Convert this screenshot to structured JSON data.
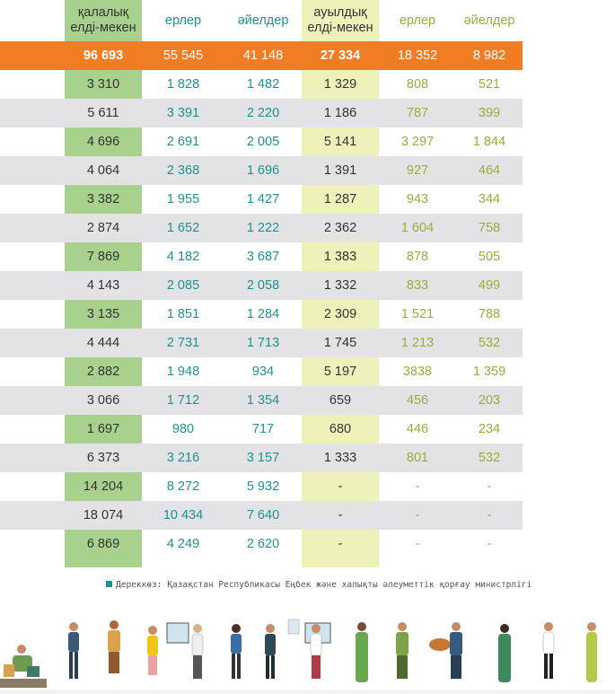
{
  "headers": {
    "urban": "қалалық\nелді-мекен",
    "urban_men": "ерлер",
    "urban_women": "әйелдер",
    "rural": "ауылдық\nелді-мекен",
    "rural_men": "ерлер",
    "rural_women": "әйелдер"
  },
  "total": [
    "96 693",
    "55 545",
    "41 148",
    "27 334",
    "18 352",
    "8 982"
  ],
  "rows": [
    [
      "3 310",
      "1 828",
      "1 482",
      "1 329",
      "808",
      "521"
    ],
    [
      "5 611",
      "3 391",
      "2 220",
      "1 186",
      "787",
      "399"
    ],
    [
      "4 696",
      "2 691",
      "2 005",
      "5 141",
      "3 297",
      "1 844"
    ],
    [
      "4 064",
      "2 368",
      "1 696",
      "1 391",
      "927",
      "464"
    ],
    [
      "3 382",
      "1 955",
      "1 427",
      "1 287",
      "943",
      "344"
    ],
    [
      "2 874",
      "1 652",
      "1 222",
      "2 362",
      "1 604",
      "758"
    ],
    [
      "7 869",
      "4 182",
      "3 687",
      "1 383",
      "878",
      "505"
    ],
    [
      "4 143",
      "2 085",
      "2 058",
      "1 332",
      "833",
      "499"
    ],
    [
      "3 135",
      "1 851",
      "1 284",
      "2 309",
      "1 521",
      "788"
    ],
    [
      "4 444",
      "2 731",
      "1 713",
      "1 745",
      "1 213",
      "532"
    ],
    [
      "2 882",
      "1 948",
      "934",
      "5 197",
      "3838",
      "1 359"
    ],
    [
      "3 066",
      "1 712",
      "1 354",
      "659",
      "456",
      "203"
    ],
    [
      "1 697",
      "980",
      "717",
      "680",
      "446",
      "234"
    ],
    [
      "6 373",
      "3 216",
      "3 157",
      "1 333",
      "801",
      "532"
    ],
    [
      "14 204",
      "8 272",
      "5 932",
      "-",
      "-",
      "-"
    ],
    [
      "18 074",
      "10 434",
      "7 640",
      "-",
      "-",
      "-"
    ],
    [
      "6 869",
      "4 249",
      "2 620",
      "-",
      "-",
      "-"
    ]
  ],
  "source": "Дереккөз: Қазақстан Республикасы Еңбек және халықты әлеуметтік қорғау министрлігі",
  "colors": {
    "urban_column": "#a9d18e",
    "rural_column": "#edf2b8",
    "total_row": "#f07d24",
    "teal_text": "#1a9391",
    "olive_text": "#9aac3b",
    "shade_row": "#e3e3e5"
  },
  "icons": [
    "people-occupations-illustration"
  ]
}
